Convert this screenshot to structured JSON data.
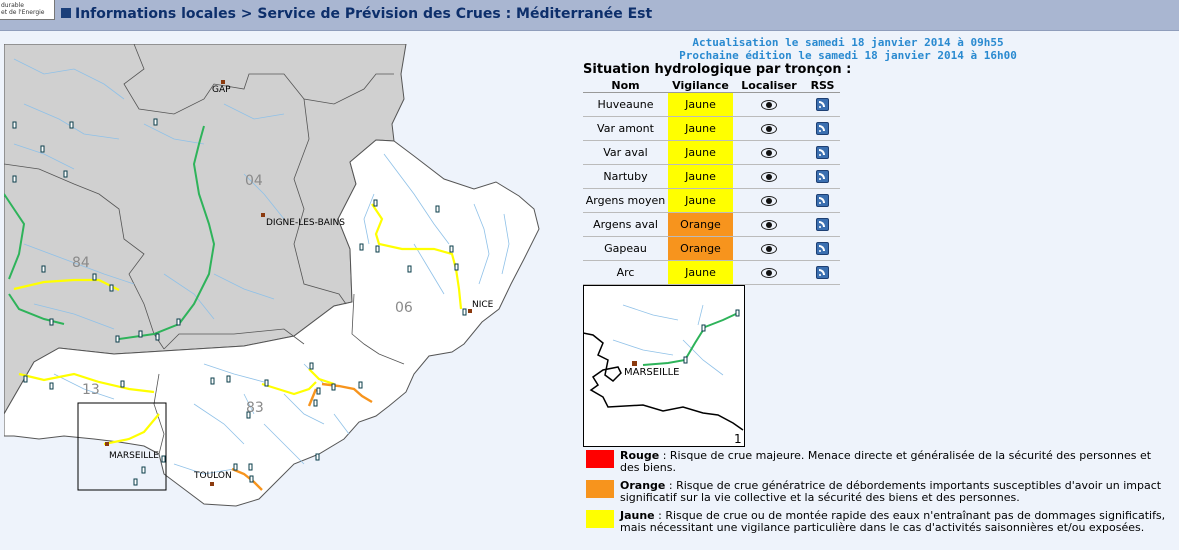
{
  "header": {
    "logo_line1": "durable",
    "logo_line2": "et de l'Energie",
    "breadcrumb": "Informations locales > Service de Prévision des Crues : Méditerranée Est"
  },
  "update": {
    "actualisation": "Actualisation le samedi 18 janvier 2014 à 09h55",
    "prochaine": "Prochaine édition le samedi 18 janvier 2014 à 16h00"
  },
  "situation_title": "Situation hydrologique par tronçon :",
  "table": {
    "headers": [
      "Nom",
      "Vigilance",
      "Localiser",
      "RSS"
    ],
    "rows": [
      {
        "name": "Huveaune",
        "vigilance": "Jaune"
      },
      {
        "name": "Var amont",
        "vigilance": "Jaune"
      },
      {
        "name": "Var aval",
        "vigilance": "Jaune"
      },
      {
        "name": "Nartuby",
        "vigilance": "Jaune"
      },
      {
        "name": "Argens moyen",
        "vigilance": "Jaune"
      },
      {
        "name": "Argens aval",
        "vigilance": "Orange"
      },
      {
        "name": "Gapeau",
        "vigilance": "Orange"
      },
      {
        "name": "Arc",
        "vigilance": "Jaune"
      }
    ]
  },
  "colors": {
    "jaune": "#ffff00",
    "orange": "#f7941d",
    "rouge": "#ff0000",
    "vert": "#2eb35a",
    "hors_zone": "#d0d0d0",
    "accent": "#2a8ad0"
  },
  "map": {
    "departments": [
      "04",
      "84",
      "06",
      "13",
      "83"
    ],
    "cities": [
      "GAP",
      "DIGNE-LES-BAINS",
      "NICE",
      "MARSEILLE",
      "TOULON"
    ]
  },
  "inset": {
    "city": "MARSEILLE",
    "number": "1"
  },
  "legend": [
    {
      "label": "Rouge",
      "text": " : Risque de crue majeure. Menace directe et généralisée de la sécurité des personnes et des biens."
    },
    {
      "label": "Orange",
      "text": " : Risque de crue génératrice de débordements importants susceptibles d'avoir un impact significatif sur la vie collective et la sécurité des biens et des personnes."
    },
    {
      "label": "Jaune",
      "text": " : Risque de crue ou de montée rapide des eaux n'entraînant pas de dommages significatifs, mais nécessitant une vigilance particulière dans le cas d'activités saisonnières et/ou exposées."
    }
  ]
}
